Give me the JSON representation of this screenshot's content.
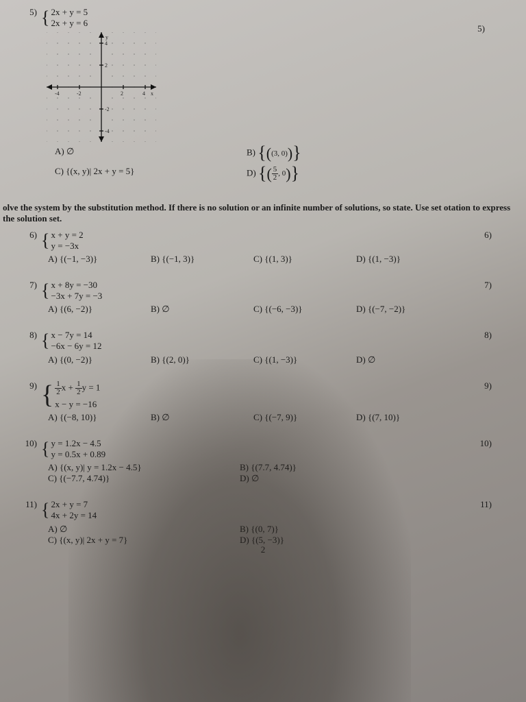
{
  "page_number": "2",
  "q5": {
    "num": "5)",
    "eq1": "2x + y = 5",
    "eq2": "2x + y = 6",
    "ans_label": "5)",
    "choiceA": "A)  ∅",
    "choiceB_label": "B) ",
    "choiceB_set": "(3, 0)",
    "choiceC": "C) {(x, y)| 2x + y = 5}",
    "choiceD_label": "D) ",
    "choiceD_num": "5",
    "choiceD_den": "2",
    "choiceD_rest": ", 0"
  },
  "graph": {
    "xmin": -5,
    "xmax": 5,
    "ymin": -5,
    "ymax": 5,
    "xticks": [
      -4,
      -2,
      2,
      4
    ],
    "yticks": [
      -4,
      -2,
      2,
      4
    ],
    "xlabel": "x",
    "ylabel": "y"
  },
  "instructions": "olve the system by the substitution method. If there is no solution or an infinite number of solutions, so state. Use set otation to express the solution set.",
  "q6": {
    "num": "6)",
    "eq1": "x + y = 2",
    "eq2": "y = −3x",
    "ans_label": "6)",
    "A": "A) {(−1, −3)}",
    "B": "B) {(−1, 3)}",
    "C": "C) {(1, 3)}",
    "D": "D) {(1, −3)}"
  },
  "q7": {
    "num": "7)",
    "eq1": "x + 8y = −30",
    "eq2": "−3x + 7y = −3",
    "ans_label": "7)",
    "A": "A) {(6, −2)}",
    "B": "B)  ∅",
    "C": "C) {(−6, −3)}",
    "D": "D) {(−7, −2)}"
  },
  "q8": {
    "num": "8)",
    "eq1": "x − 7y = 14",
    "eq2": "−6x − 6y = 12",
    "ans_label": "8)",
    "A": "A) {(0, −2)}",
    "B": "B) {(2, 0)}",
    "C": "C) {(1, −3)}",
    "D": "D)  ∅"
  },
  "q9": {
    "num": "9)",
    "eq1_pre": "",
    "eq1_n1": "1",
    "eq1_d1": "2",
    "eq1_mid": "x + ",
    "eq1_n2": "1",
    "eq1_d2": "2",
    "eq1_post": "y = 1",
    "eq2": "x − y = −16",
    "ans_label": "9)",
    "A": "A) {(−8, 10)}",
    "B": "B)  ∅",
    "C": "C) {(−7, 9)}",
    "D": "D) {(7, 10)}"
  },
  "q10": {
    "num": "10)",
    "eq1": "y = 1.2x − 4.5",
    "eq2": "y = 0.5x + 0.89",
    "ans_label": "10)",
    "A": "A) {(x, y)| y = 1.2x − 4.5}",
    "B": "B) {(7.7, 4.74)}",
    "C": "C) {(−7.7, 4.74)}",
    "D": "D)  ∅"
  },
  "q11": {
    "num": "11)",
    "eq1": "2x + y = 7",
    "eq2": "4x + 2y = 14",
    "ans_label": "11)",
    "A": "A)  ∅",
    "B": "B) {(0, 7)}",
    "C": "C) {(x, y)| 2x + y = 7}",
    "D": "D) {(5, −3)}"
  }
}
